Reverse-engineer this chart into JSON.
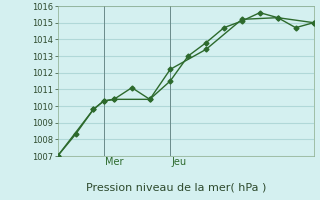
{
  "title": "Pression niveau de la mer( hPa )",
  "background_color": "#d4f0f0",
  "grid_color": "#b0d8d8",
  "line_color": "#2d6a2d",
  "vline_color": "#6a8a8a",
  "ylim": [
    1007,
    1016
  ],
  "yticks": [
    1007,
    1008,
    1009,
    1010,
    1011,
    1012,
    1013,
    1014,
    1015,
    1016
  ],
  "vline_positions": [
    0.18,
    0.44
  ],
  "vline_labels": [
    "Mer",
    "Jeu"
  ],
  "series1_x": [
    0.0,
    0.07,
    0.14,
    0.18,
    0.22,
    0.29,
    0.36,
    0.44,
    0.51,
    0.58,
    0.65,
    0.72,
    0.79,
    0.86,
    0.93,
    1.0
  ],
  "series1_y": [
    1007.0,
    1008.3,
    1009.8,
    1010.3,
    1010.4,
    1011.1,
    1010.4,
    1011.5,
    1013.0,
    1013.8,
    1014.7,
    1015.1,
    1015.6,
    1015.3,
    1014.7,
    1015.0
  ],
  "series2_x": [
    0.0,
    0.14,
    0.18,
    0.22,
    0.36,
    0.44,
    0.58,
    0.72,
    0.86,
    1.0
  ],
  "series2_y": [
    1007.0,
    1009.8,
    1010.3,
    1010.4,
    1010.4,
    1012.2,
    1013.4,
    1015.2,
    1015.3,
    1015.0
  ],
  "xlabel_fontsize": 8,
  "tick_fontsize": 6,
  "vline_fontsize": 7
}
